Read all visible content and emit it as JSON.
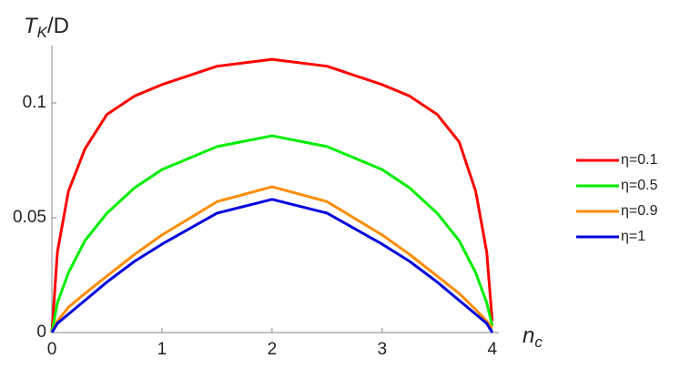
{
  "chart_data": {
    "type": "line",
    "ylabel": {
      "text": "T",
      "subscript": "K",
      "suffix": "/D"
    },
    "xlabel": {
      "text": "n",
      "subscript": "c"
    },
    "x": [
      0,
      0.05,
      0.15,
      0.3,
      0.5,
      0.75,
      1,
      1.5,
      2,
      2.5,
      3,
      3.25,
      3.5,
      3.7,
      3.85,
      3.95,
      4
    ],
    "series": [
      {
        "name": "η=0.1",
        "color": "#ff0000",
        "values": [
          0,
          0.035,
          0.0615,
          0.08,
          0.095,
          0.103,
          0.108,
          0.116,
          0.119,
          0.116,
          0.108,
          0.103,
          0.095,
          0.083,
          0.0615,
          0.035,
          0.005
        ]
      },
      {
        "name": "η=0.5",
        "color": "#00ee00",
        "values": [
          0,
          0.013,
          0.026,
          0.04,
          0.052,
          0.063,
          0.071,
          0.081,
          0.0857,
          0.081,
          0.071,
          0.063,
          0.052,
          0.04,
          0.026,
          0.013,
          0.003
        ]
      },
      {
        "name": "η=0.9",
        "color": "#ff8c00",
        "values": [
          0,
          0.005,
          0.011,
          0.017,
          0.0246,
          0.034,
          0.0425,
          0.057,
          0.0635,
          0.057,
          0.0425,
          0.034,
          0.0246,
          0.017,
          0.01,
          0.005,
          0.002
        ]
      },
      {
        "name": "η=1",
        "color": "#0000dd",
        "values": [
          0,
          0.004,
          0.008,
          0.014,
          0.022,
          0.031,
          0.0385,
          0.052,
          0.058,
          0.052,
          0.0385,
          0.031,
          0.022,
          0.014,
          0.008,
          0.004,
          0
        ]
      }
    ],
    "xlim": [
      0,
      4.06
    ],
    "xticks": [
      0,
      1,
      2,
      3,
      4
    ],
    "ylim": [
      0,
      0.125
    ],
    "yticks": [
      0,
      0.05,
      0.1
    ],
    "legend": "right"
  }
}
